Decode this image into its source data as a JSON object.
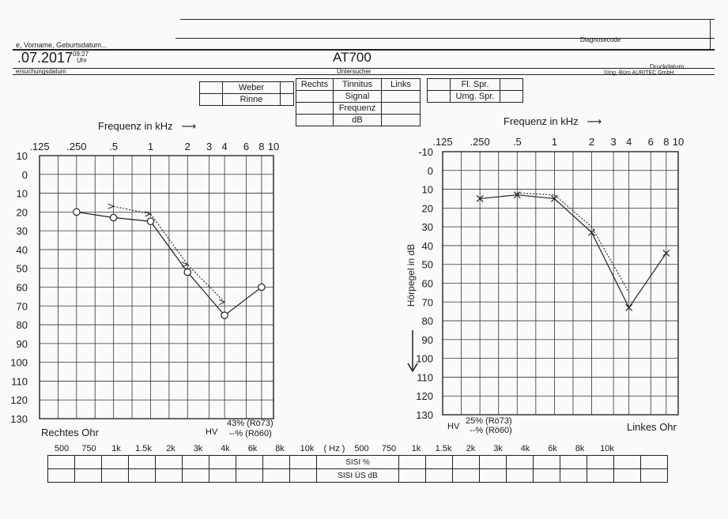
{
  "header": {
    "name_label": "e, Vorname, Geburtsdatum...",
    "date": ".07.2017",
    "time": "09:27",
    "time_unit": "Uhr",
    "exam_date_label": "ersuchungsdatum",
    "device": "AT700",
    "examiner_label": "Untersucher",
    "diagnosis_label": "Diagnosecode",
    "print_label": "Druckdatum",
    "company": "©Ing.-Büro AURITEC GmbH"
  },
  "weber_rinne": [
    "Weber",
    "Rinne"
  ],
  "tinnitus_table": {
    "left_header": "Rechts",
    "right_header": "Links",
    "rows": [
      "Tinnitus",
      "Signal",
      "Frequenz",
      "dB"
    ]
  },
  "speech_table": [
    "Fl. Spr.",
    "Umg. Spr."
  ],
  "freq_title": "Frequenz in kHz",
  "freq_arrow": "⟶",
  "freq_ticks": [
    ".125",
    ".250",
    ".5",
    "1",
    "2",
    "3",
    "4",
    "6",
    "8",
    "10"
  ],
  "db_ticks": [
    "10",
    "0",
    "10",
    "20",
    "30",
    "40",
    "50",
    "60",
    "70",
    "80",
    "90",
    "100",
    "110",
    "120",
    "130"
  ],
  "db_ticks_left_ear": [
    "-10",
    "0",
    "10",
    "20",
    "30",
    "40",
    "50",
    "60",
    "70",
    "80",
    "90",
    "100",
    "110",
    "120",
    "130"
  ],
  "ylabel": "Hörpegel in dB",
  "right_ear": {
    "label": "Rechtes Ohr",
    "hv_label": "HV",
    "hv_line1": "43% (Rö73)",
    "hv_line2": "--% (Rö60)"
  },
  "left_ear": {
    "label": "Linkes Ohr",
    "hv_label": "HV",
    "hv_line1": "25% (Rö73)",
    "hv_line2": "--% (Rö60)"
  },
  "chart_data": [
    {
      "type": "line",
      "title": "Rechtes Ohr",
      "xlabel": "Frequenz in kHz",
      "ylabel": "",
      "x_scale": "log",
      "ylim": [
        -10,
        130
      ],
      "series": [
        {
          "marker": "circle",
          "style": "solid",
          "x": [
            0.25,
            0.5,
            1,
            2,
            4,
            8
          ],
          "y": [
            20,
            23,
            25,
            52,
            75,
            60
          ]
        },
        {
          "marker": "arrow",
          "style": "dotted",
          "x": [
            0.5,
            1,
            2,
            4
          ],
          "y": [
            17,
            21,
            48,
            68
          ]
        }
      ]
    },
    {
      "type": "line",
      "title": "Linkes Ohr",
      "xlabel": "Frequenz in kHz",
      "ylabel": "Hörpegel in dB",
      "x_scale": "log",
      "ylim": [
        -10,
        130
      ],
      "series": [
        {
          "marker": "x",
          "style": "solid",
          "x": [
            0.25,
            0.5,
            1,
            2,
            4,
            8
          ],
          "y": [
            15,
            13,
            15,
            33,
            73,
            44
          ]
        },
        {
          "marker": "none",
          "style": "dotted",
          "x": [
            0.5,
            1,
            2,
            4
          ],
          "y": [
            12,
            13,
            30,
            65
          ]
        }
      ]
    }
  ],
  "sisi": {
    "freqs_right": [
      "500",
      "750",
      "1k",
      "1.5k",
      "2k",
      "3k",
      "4k",
      "6k",
      "8k",
      "10k"
    ],
    "unit": "( Hz )",
    "freqs_left": [
      "500",
      "750",
      "1k",
      "1.5k",
      "2k",
      "3k",
      "4k",
      "6k",
      "8k",
      "10k"
    ],
    "row1": "SISI %",
    "row2": "SISI ÜS dB"
  }
}
